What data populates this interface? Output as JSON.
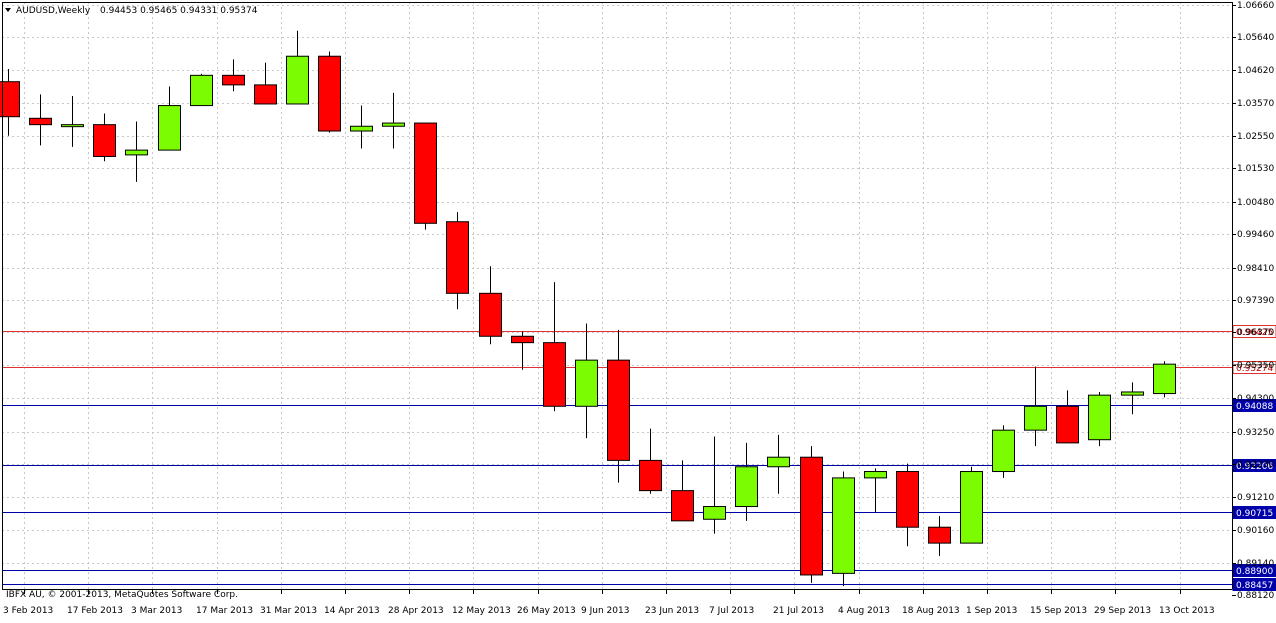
{
  "header": {
    "symbol": "AUDUSD,Weekly",
    "ohlc": "0.94453 0.95465 0.94331 0.95374"
  },
  "copyright": "IBFX AU, © 2001-2013, MetaQuotes Software Corp.",
  "colors": {
    "bull": "#7cfc00",
    "bear": "#ff0000",
    "red_level": "#e03030",
    "blue_level": "#0000aa",
    "grid": "#c8c8c8",
    "axis": "#000000"
  },
  "chart_data": {
    "type": "candlestick",
    "interval": "weekly",
    "y_ticks": [
      "1.06660",
      "1.05640",
      "1.04620",
      "1.03570",
      "1.02550",
      "1.01530",
      "1.00480",
      "0.99460",
      "0.98410",
      "0.97390",
      "0.96370",
      "0.95350",
      "0.94300",
      "0.93250",
      "0.92230",
      "0.91210",
      "0.90160",
      "0.89140",
      "0.88120"
    ],
    "x_ticks": [
      {
        "label": "3 Feb 2013",
        "index": 0
      },
      {
        "label": "17 Feb 2013",
        "index": 2
      },
      {
        "label": "3 Mar 2013",
        "index": 4
      },
      {
        "label": "17 Mar 2013",
        "index": 6
      },
      {
        "label": "31 Mar 2013",
        "index": 8
      },
      {
        "label": "14 Apr 2013",
        "index": 10
      },
      {
        "label": "28 Apr 2013",
        "index": 12
      },
      {
        "label": "12 May 2013",
        "index": 14
      },
      {
        "label": "26 May 2013",
        "index": 16
      },
      {
        "label": "9 Jun 2013",
        "index": 18
      },
      {
        "label": "23 Jun 2013",
        "index": 20
      },
      {
        "label": "7 Jul 2013",
        "index": 22
      },
      {
        "label": "21 Jul 2013",
        "index": 24
      },
      {
        "label": "4 Aug 2013",
        "index": 26
      },
      {
        "label": "18 Aug 2013",
        "index": 28
      },
      {
        "label": "1 Sep 2013",
        "index": 30
      },
      {
        "label": "15 Sep 2013",
        "index": 32
      },
      {
        "label": "29 Sep 2013",
        "index": 34
      },
      {
        "label": "13 Oct 2013",
        "index": 36
      }
    ],
    "candles": [
      {
        "o": 1.0425,
        "h": 1.0465,
        "l": 1.0255,
        "c": 1.0315
      },
      {
        "o": 1.031,
        "h": 1.0385,
        "l": 1.0225,
        "c": 1.029
      },
      {
        "o": 1.029,
        "h": 1.038,
        "l": 1.022,
        "c": 1.029
      },
      {
        "o": 1.029,
        "h": 1.0325,
        "l": 1.0175,
        "c": 1.019
      },
      {
        "o": 1.0195,
        "h": 1.03,
        "l": 1.011,
        "c": 1.021
      },
      {
        "o": 1.021,
        "h": 1.041,
        "l": 1.021,
        "c": 1.035
      },
      {
        "o": 1.035,
        "h": 1.045,
        "l": 1.035,
        "c": 1.0445
      },
      {
        "o": 1.0445,
        "h": 1.0495,
        "l": 1.0395,
        "c": 1.0415
      },
      {
        "o": 1.0415,
        "h": 1.0485,
        "l": 1.0355,
        "c": 1.0355
      },
      {
        "o": 1.0355,
        "h": 1.0585,
        "l": 1.0355,
        "c": 1.0505
      },
      {
        "o": 1.0505,
        "h": 1.052,
        "l": 1.0265,
        "c": 1.027
      },
      {
        "o": 1.027,
        "h": 1.035,
        "l": 1.0215,
        "c": 1.0285
      },
      {
        "o": 1.0285,
        "h": 1.039,
        "l": 1.0215,
        "c": 1.0295
      },
      {
        "o": 1.0295,
        "h": 1.0295,
        "l": 0.996,
        "c": 0.998
      },
      {
        "o": 0.9985,
        "h": 1.0015,
        "l": 0.971,
        "c": 0.976
      },
      {
        "o": 0.976,
        "h": 0.9845,
        "l": 0.96,
        "c": 0.9625
      },
      {
        "o": 0.9625,
        "h": 0.964,
        "l": 0.952,
        "c": 0.9605
      },
      {
        "o": 0.9605,
        "h": 0.9795,
        "l": 0.939,
        "c": 0.9405
      },
      {
        "o": 0.9405,
        "h": 0.9665,
        "l": 0.9305,
        "c": 0.955
      },
      {
        "o": 0.955,
        "h": 0.9645,
        "l": 0.9165,
        "c": 0.9235
      },
      {
        "o": 0.9235,
        "h": 0.9335,
        "l": 0.913,
        "c": 0.914
      },
      {
        "o": 0.914,
        "h": 0.9235,
        "l": 0.9045,
        "c": 0.9045
      },
      {
        "o": 0.905,
        "h": 0.931,
        "l": 0.9005,
        "c": 0.909
      },
      {
        "o": 0.909,
        "h": 0.929,
        "l": 0.9045,
        "c": 0.9215
      },
      {
        "o": 0.9215,
        "h": 0.9315,
        "l": 0.913,
        "c": 0.9245
      },
      {
        "o": 0.9245,
        "h": 0.928,
        "l": 0.885,
        "c": 0.8875
      },
      {
        "o": 0.888,
        "h": 0.92,
        "l": 0.884,
        "c": 0.918
      },
      {
        "o": 0.918,
        "h": 0.921,
        "l": 0.907,
        "c": 0.92
      },
      {
        "o": 0.92,
        "h": 0.9225,
        "l": 0.8965,
        "c": 0.9025
      },
      {
        "o": 0.9025,
        "h": 0.906,
        "l": 0.8935,
        "c": 0.8975
      },
      {
        "o": 0.8975,
        "h": 0.9215,
        "l": 0.8975,
        "c": 0.92
      },
      {
        "o": 0.92,
        "h": 0.9345,
        "l": 0.918,
        "c": 0.933
      },
      {
        "o": 0.933,
        "h": 0.953,
        "l": 0.928,
        "c": 0.9405
      },
      {
        "o": 0.9405,
        "h": 0.9455,
        "l": 0.929,
        "c": 0.929
      },
      {
        "o": 0.93,
        "h": 0.945,
        "l": 0.928,
        "c": 0.944
      },
      {
        "o": 0.944,
        "h": 0.948,
        "l": 0.938,
        "c": 0.945
      },
      {
        "o": 0.9445,
        "h": 0.95465,
        "l": 0.94331,
        "c": 0.95374
      }
    ],
    "levels": [
      {
        "value": 0.96425,
        "label": "0.96425",
        "color": "red"
      },
      {
        "value": 0.95274,
        "label": "0.95274",
        "color": "red"
      },
      {
        "value": 0.94088,
        "label": "0.94088",
        "color": "blue"
      },
      {
        "value": 0.92206,
        "label": "0.92206",
        "color": "blue"
      },
      {
        "value": 0.90715,
        "label": "0.90715",
        "color": "blue"
      },
      {
        "value": 0.889,
        "label": "0.88900",
        "color": "blue"
      },
      {
        "value": 0.88457,
        "label": "0.88457",
        "color": "blue"
      }
    ],
    "current_price": {
      "value": 0.95374,
      "label": "0.95374"
    },
    "grid": true
  }
}
